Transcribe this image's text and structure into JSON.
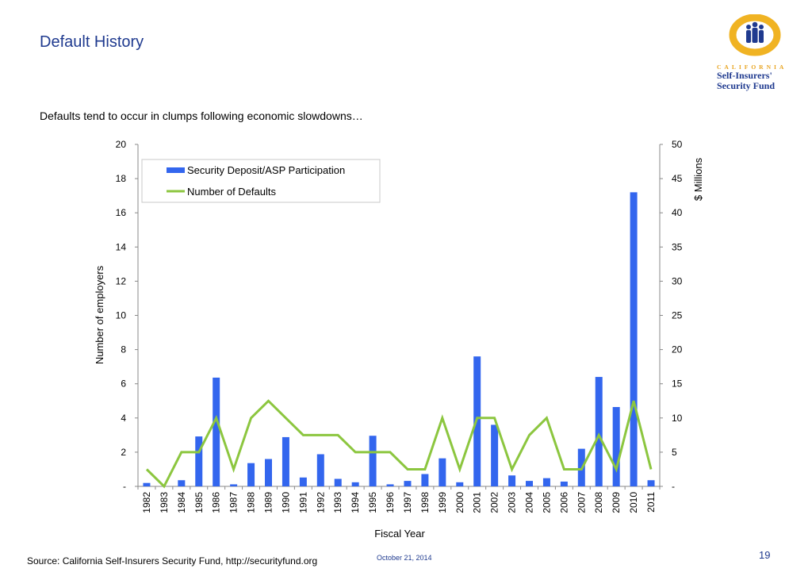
{
  "slide": {
    "title": "Default History",
    "subtitle": "Defaults tend to occur in clumps following economic slowdowns…",
    "source": "Source: California Self-Insurers Security Fund, http://securityfund.org",
    "date": "October 21, 2014",
    "page_number": "19"
  },
  "logo": {
    "line1": "CALIFORNIA",
    "line2": "Self-Insurers'",
    "line3": "Security Fund",
    "colors": {
      "ring": "#f0b323",
      "figures": "#1f3a8f"
    }
  },
  "chart_data": {
    "type": "bar",
    "xlabel": "Fiscal Year",
    "ylabel_left": "Number of employers",
    "ylabel_right": "$ Millions",
    "ylim_left": [
      0,
      20
    ],
    "ylim_right": [
      0,
      50
    ],
    "yticks_left": [
      "-",
      "2",
      "4",
      "6",
      "8",
      "10",
      "12",
      "14",
      "16",
      "18",
      "20"
    ],
    "yticks_right": [
      "-",
      "5",
      "10",
      "15",
      "20",
      "25",
      "30",
      "35",
      "40",
      "45",
      "50"
    ],
    "legend_position": "top-left",
    "grid": false,
    "categories": [
      "1982",
      "1983",
      "1984",
      "1985",
      "1986",
      "1987",
      "1988",
      "1989",
      "1990",
      "1991",
      "1992",
      "1993",
      "1994",
      "1995",
      "1996",
      "1997",
      "1998",
      "1999",
      "2000",
      "2001",
      "2002",
      "2003",
      "2004",
      "2005",
      "2006",
      "2007",
      "2008",
      "2009",
      "2010",
      "2011"
    ],
    "series": [
      {
        "name": "Security Deposit/ASP Participation",
        "kind": "bar",
        "axis": "right",
        "color": "#3366ee",
        "values": [
          0.5,
          0,
          0.9,
          7.3,
          15.9,
          0.3,
          3.4,
          4,
          7.2,
          1.3,
          4.7,
          1.1,
          0.6,
          7.4,
          0.3,
          0.8,
          1.8,
          4.1,
          0.6,
          19,
          9,
          1.6,
          0.8,
          1.2,
          0.7,
          5.5,
          16,
          11.6,
          43,
          0.9
        ]
      },
      {
        "name": "Number of Defaults",
        "kind": "line",
        "axis": "left",
        "color": "#8cc63f",
        "values": [
          1,
          0,
          2,
          2,
          4,
          1,
          4,
          5,
          4,
          3,
          3,
          3,
          2,
          2,
          2,
          1,
          1,
          4,
          1,
          4,
          4,
          1,
          3,
          4,
          1,
          1,
          3,
          1,
          5,
          1
        ]
      }
    ]
  }
}
